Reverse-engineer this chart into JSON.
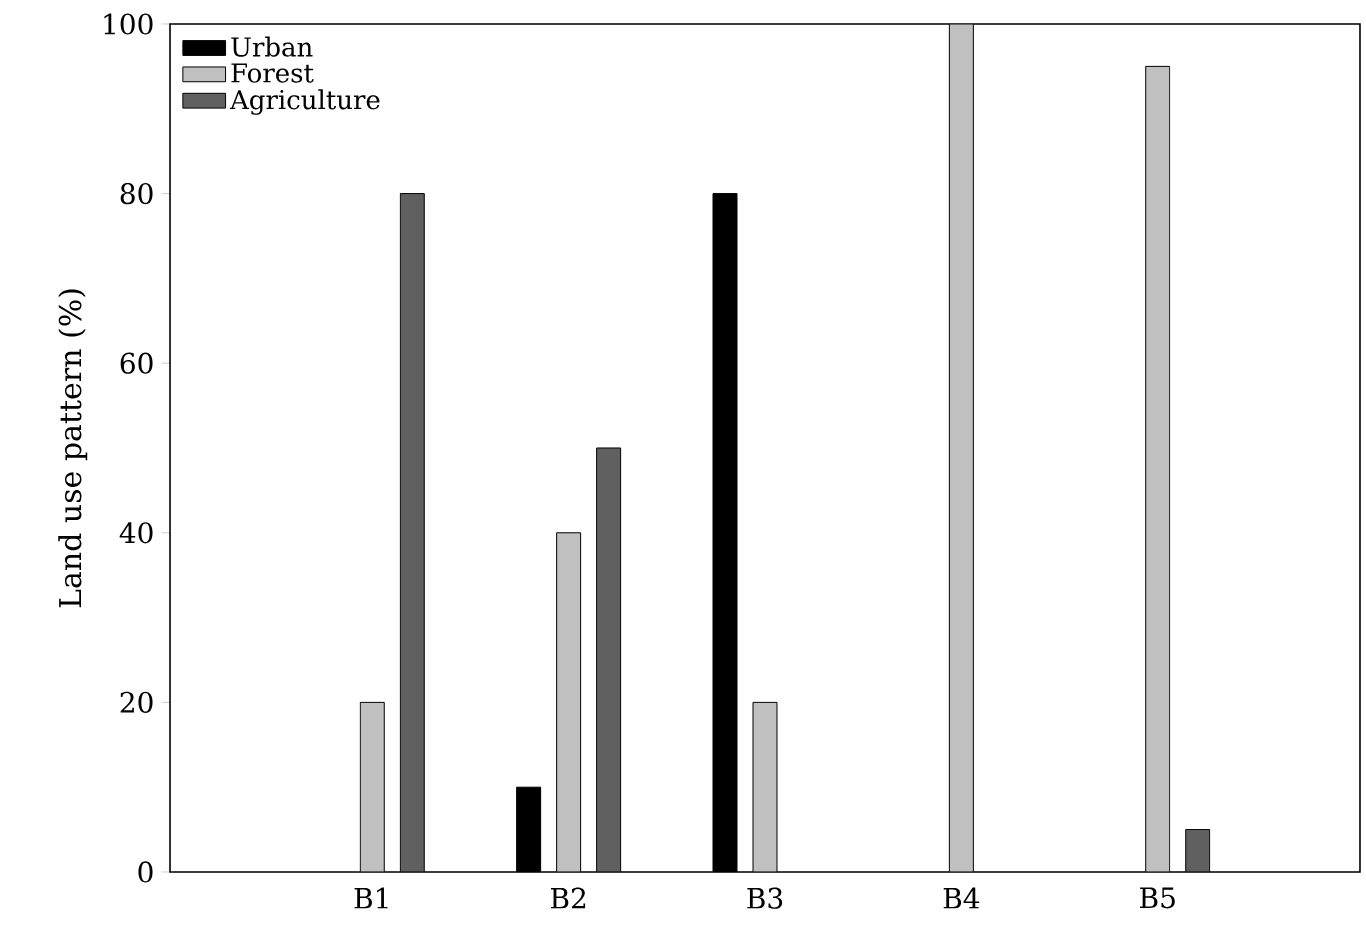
{
  "chart_data": {
    "type": "bar",
    "ylabel": "Land use pattern (%)",
    "categories": [
      "B1",
      "B2",
      "B3",
      "B4",
      "B5"
    ],
    "series": [
      {
        "name": "Urban",
        "color": "#000000",
        "values": [
          null,
          10,
          80,
          null,
          null
        ]
      },
      {
        "name": "Forest",
        "color": "#c0c0c0",
        "values": [
          20,
          40,
          20,
          100,
          95
        ]
      },
      {
        "name": "Agriculture",
        "color": "#606060",
        "values": [
          80,
          50,
          null,
          null,
          5
        ]
      }
    ],
    "ylim": [
      0,
      100
    ],
    "yticks": [
      0,
      20,
      40,
      60,
      80,
      100
    ],
    "legend": "top left",
    "grid": false
  }
}
